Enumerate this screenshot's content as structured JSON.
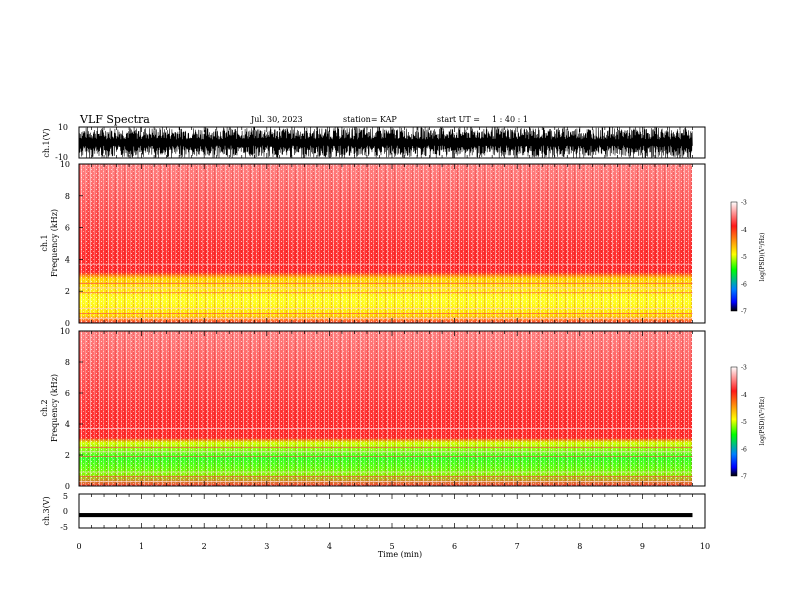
{
  "header": {
    "title": "VLF Spectra",
    "date": "Jul. 30, 2023",
    "station_label": "station=",
    "station": "KAP",
    "start_label": "start UT =",
    "start_time": "1 : 40 : 1"
  },
  "colors": {
    "spectrogram_background": "#ffffff",
    "colormap": [
      "#ffffff",
      "#ff2020",
      "#ffff00",
      "#00ff00",
      "#0000ff",
      "#000000"
    ]
  },
  "chart_data": [
    {
      "type": "line",
      "title": "",
      "ylabel": "ch.1(V)",
      "ylim": [
        -10,
        10
      ],
      "yticks": [
        "10",
        "-10"
      ],
      "x_range_min": [
        0,
        9.8
      ],
      "description_level": "dense oscillation spanning roughly -10 to 10 V"
    },
    {
      "type": "heatmap",
      "ylabel_top": "ch.1",
      "ylabel": "Frequency (kHz)",
      "ylim": [
        0,
        10
      ],
      "yticks": [
        "0",
        "2",
        "4",
        "6",
        "8",
        "10"
      ],
      "x_range_min": [
        0,
        9.8
      ],
      "colorbar": {
        "label": "log(PSD)(V²/Hz)",
        "range": [
          -7,
          -3
        ],
        "ticks": [
          "-3",
          "-4",
          "-5",
          "-6",
          "-7"
        ]
      },
      "bands": [
        {
          "freq_khz": [
            0,
            3.2
          ],
          "color": "yellow-red mix"
        },
        {
          "freq_khz": [
            3.2,
            10
          ],
          "color": "red"
        }
      ]
    },
    {
      "type": "heatmap",
      "ylabel_top": "ch.2",
      "ylabel": "Frequency (kHz)",
      "ylim": [
        0,
        10
      ],
      "yticks": [
        "0",
        "2",
        "4",
        "6",
        "8",
        "10"
      ],
      "x_range_min": [
        0,
        9.8
      ],
      "colorbar": {
        "label": "log(PSD)(V²/Hz)",
        "range": [
          -7,
          -3
        ],
        "ticks": [
          "-3",
          "-4",
          "-5",
          "-6",
          "-7"
        ]
      },
      "bands": [
        {
          "freq_khz": [
            0,
            3.0
          ],
          "color": "green-yellow mix"
        },
        {
          "freq_khz": [
            3.0,
            10
          ],
          "color": "red"
        }
      ]
    },
    {
      "type": "line",
      "ylabel": "ch.3(V)",
      "ylim": [
        -5,
        5
      ],
      "yticks": [
        "5",
        "0",
        "-5"
      ],
      "x_range_min": [
        0,
        9.8
      ],
      "level_V": [
        -1.8,
        -0.6
      ]
    }
  ],
  "xaxis": {
    "label": "Time (min)",
    "range": [
      0,
      10
    ],
    "ticks": [
      "0",
      "1",
      "2",
      "3",
      "4",
      "5",
      "6",
      "7",
      "8",
      "9",
      "10"
    ]
  }
}
